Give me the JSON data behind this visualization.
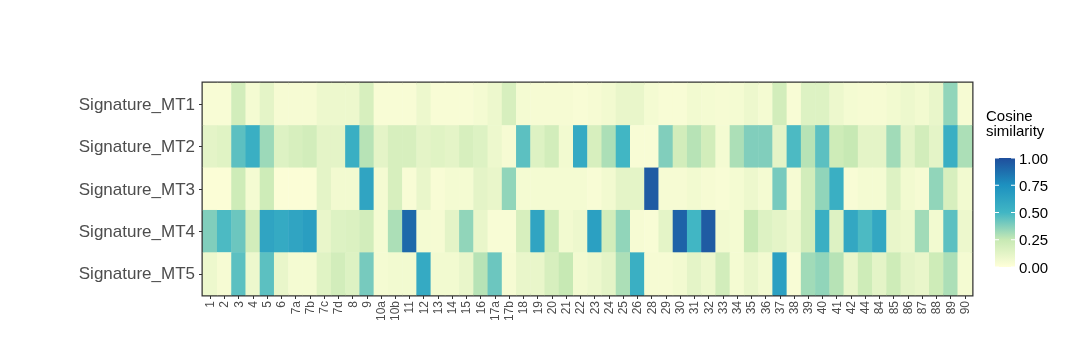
{
  "chart_data": {
    "type": "heatmap",
    "clabel": "Cosine similarity",
    "categories": [
      "1",
      "2",
      "3",
      "4",
      "5",
      "6",
      "7a",
      "7b",
      "7c",
      "7d",
      "8",
      "9",
      "10a",
      "10b",
      "11",
      "12",
      "13",
      "14",
      "15",
      "16",
      "17a",
      "17b",
      "18",
      "19",
      "20",
      "21",
      "22",
      "23",
      "24",
      "25",
      "26",
      "28",
      "29",
      "30",
      "31",
      "32",
      "33",
      "34",
      "35",
      "36",
      "37",
      "38",
      "39",
      "40",
      "41",
      "42",
      "44",
      "84",
      "85",
      "86",
      "87",
      "88",
      "89",
      "90"
    ],
    "y_categories": [
      "Signature_MT1",
      "Signature_MT2",
      "Signature_MT3",
      "Signature_MT4",
      "Signature_MT5"
    ],
    "cells": [
      [
        0.03,
        0.03,
        0.2,
        0.05,
        0.12,
        0.04,
        0.04,
        0.04,
        0.08,
        0.08,
        0.08,
        0.18,
        0.03,
        0.03,
        0.03,
        0.08,
        0.03,
        0.03,
        0.03,
        0.05,
        0.08,
        0.18,
        0.05,
        0.04,
        0.04,
        0.04,
        0.03,
        0.04,
        0.06,
        0.1,
        0.1,
        0.05,
        0.03,
        0.03,
        0.06,
        0.05,
        0.04,
        0.05,
        0.08,
        0.05,
        0.2,
        0.03,
        0.15,
        0.15,
        0.08,
        0.05,
        0.04,
        0.04,
        0.06,
        0.08,
        0.06,
        0.1,
        0.35,
        0.04
      ],
      [
        0.12,
        0.14,
        0.45,
        0.55,
        0.33,
        0.15,
        0.18,
        0.2,
        0.12,
        0.12,
        0.55,
        0.28,
        0.12,
        0.18,
        0.18,
        0.12,
        0.14,
        0.12,
        0.18,
        0.15,
        0.08,
        0.04,
        0.45,
        0.15,
        0.2,
        0.06,
        0.58,
        0.18,
        0.3,
        0.5,
        0.03,
        0.03,
        0.38,
        0.2,
        0.28,
        0.2,
        0.05,
        0.3,
        0.38,
        0.38,
        0.12,
        0.48,
        0.28,
        0.45,
        0.22,
        0.25,
        0.12,
        0.12,
        0.32,
        0.12,
        0.2,
        0.12,
        0.55,
        0.3
      ],
      [
        0.02,
        0.02,
        0.22,
        0.05,
        0.22,
        0.02,
        0.02,
        0.02,
        0.12,
        0.06,
        0.06,
        0.62,
        0.05,
        0.18,
        0.03,
        0.1,
        0.03,
        0.05,
        0.05,
        0.12,
        0.1,
        0.35,
        0.05,
        0.05,
        0.05,
        0.05,
        0.05,
        0.03,
        0.06,
        0.12,
        0.12,
        0.95,
        0.04,
        0.04,
        0.06,
        0.04,
        0.03,
        0.05,
        0.08,
        0.05,
        0.4,
        0.04,
        0.2,
        0.35,
        0.55,
        0.03,
        0.05,
        0.05,
        0.15,
        0.06,
        0.04,
        0.35,
        0.18,
        0.06
      ],
      [
        0.38,
        0.48,
        0.42,
        0.2,
        0.62,
        0.58,
        0.62,
        0.66,
        0.1,
        0.15,
        0.16,
        0.2,
        0.05,
        0.3,
        0.9,
        0.05,
        0.04,
        0.12,
        0.35,
        0.1,
        0.03,
        0.03,
        0.18,
        0.62,
        0.22,
        0.06,
        0.08,
        0.65,
        0.2,
        0.35,
        0.04,
        0.03,
        0.12,
        0.92,
        0.5,
        0.95,
        0.06,
        0.05,
        0.25,
        0.15,
        0.12,
        0.08,
        0.2,
        0.55,
        0.15,
        0.6,
        0.48,
        0.6,
        0.1,
        0.08,
        0.32,
        0.06,
        0.45,
        0.08
      ],
      [
        0.08,
        0.04,
        0.45,
        0.08,
        0.45,
        0.1,
        0.05,
        0.05,
        0.14,
        0.2,
        0.15,
        0.4,
        0.05,
        0.06,
        0.06,
        0.58,
        0.06,
        0.06,
        0.1,
        0.28,
        0.42,
        0.04,
        0.1,
        0.1,
        0.18,
        0.25,
        0.06,
        0.08,
        0.12,
        0.3,
        0.55,
        0.04,
        0.04,
        0.06,
        0.12,
        0.08,
        0.2,
        0.05,
        0.1,
        0.06,
        0.65,
        0.03,
        0.32,
        0.35,
        0.28,
        0.1,
        0.22,
        0.12,
        0.22,
        0.12,
        0.1,
        0.22,
        0.3,
        0.05
      ]
    ],
    "clim": [
      0,
      1
    ],
    "cticks": [
      {
        "value": 0,
        "label": "0.00"
      },
      {
        "value": 0.25,
        "label": "0.25"
      },
      {
        "value": 0.5,
        "label": "0.50"
      },
      {
        "value": 0.75,
        "label": "0.75"
      },
      {
        "value": 1,
        "label": "1.00"
      }
    ]
  }
}
